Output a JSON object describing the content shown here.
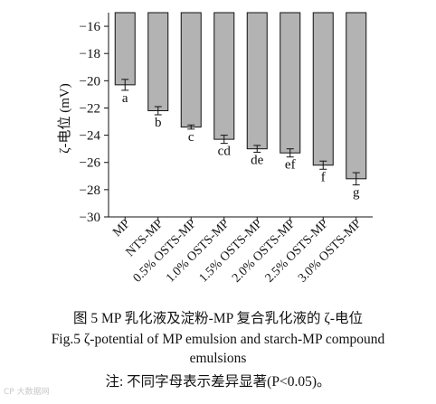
{
  "chart_data": {
    "type": "bar",
    "categories": [
      "MP",
      "NTS-MP",
      "0.5% OSTS-MP",
      "1.0% OSTS-MP",
      "1.5% OSTS-MP",
      "2.0% OSTS-MP",
      "2.5% OSTS-MP",
      "3.0% OSTS-MP"
    ],
    "values": [
      -20.3,
      -22.2,
      -23.4,
      -24.3,
      -25.0,
      -25.3,
      -26.2,
      -27.2
    ],
    "errors": [
      0.4,
      0.3,
      0.15,
      0.3,
      0.25,
      0.3,
      0.3,
      0.45
    ],
    "significance_letters": [
      "a",
      "b",
      "c",
      "cd",
      "de",
      "ef",
      "f",
      "g"
    ],
    "ylabel": "ζ-电位 (mV)",
    "ylim": [
      -30,
      -15
    ],
    "yticks": [
      -16,
      -18,
      -20,
      -22,
      -24,
      -26,
      -28,
      -30
    ],
    "bar_color": "#b3b3b3",
    "grid": false
  },
  "caption": {
    "chinese": "图 5 MP 乳化液及淀粉-MP 复合乳化液的 ζ-电位",
    "english_line1": "Fig.5 ζ-potential of MP emulsion and starch-MP compound",
    "english_line2": "emulsions",
    "note": "注: 不同字母表示差异显著(P<0.05)。"
  },
  "watermark": "CP 大数据网"
}
